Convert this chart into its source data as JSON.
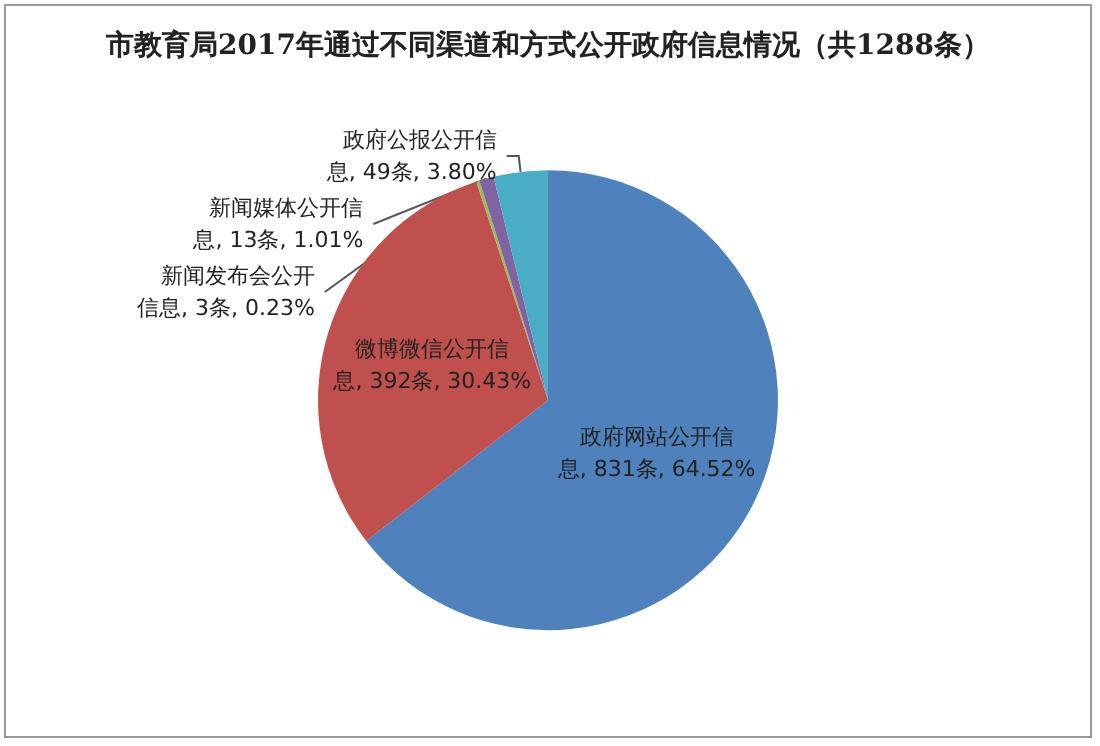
{
  "chart_data": {
    "type": "pie",
    "title": "市教育局2017年通过不同渠道和方式公开政府信息情况（共1288条）",
    "categories": [
      "政府网站公开信息",
      "微博微信公开信息",
      "新闻发布会公开信息",
      "新闻媒体公开信息",
      "政府公报公开信息"
    ],
    "values": [
      831,
      392,
      3,
      13,
      49
    ],
    "value_labels": [
      "831条, 64.52%",
      "392条, 30.43%",
      "3条, 0.23%",
      "13条, 1.01%",
      "49条, 3.80%"
    ],
    "colors": [
      "#4f81bd",
      "#c0504d",
      "#9bbb59",
      "#8064a2",
      "#4bacc6"
    ],
    "legend": false
  }
}
